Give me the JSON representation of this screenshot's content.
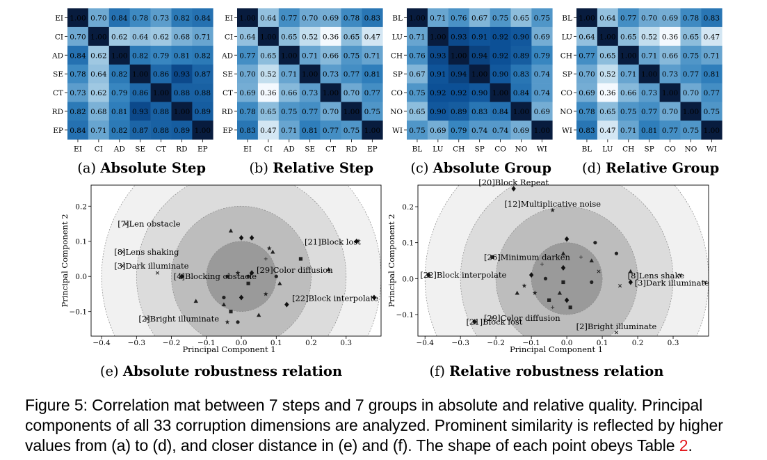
{
  "figure": {
    "matrices": [
      {
        "letter": "(a)",
        "title": "Absolute Step",
        "labels": [
          "EI",
          "CI",
          "AD",
          "SE",
          "CT",
          "RD",
          "EP"
        ],
        "values": [
          [
            1.0,
            0.7,
            0.84,
            0.78,
            0.73,
            0.82,
            0.84
          ],
          [
            0.7,
            1.0,
            0.62,
            0.64,
            0.62,
            0.68,
            0.71
          ],
          [
            0.84,
            0.62,
            1.0,
            0.82,
            0.79,
            0.81,
            0.82
          ],
          [
            0.78,
            0.64,
            0.82,
            1.0,
            0.86,
            0.93,
            0.87
          ],
          [
            0.73,
            0.62,
            0.79,
            0.86,
            1.0,
            0.88,
            0.88
          ],
          [
            0.82,
            0.68,
            0.81,
            0.93,
            0.88,
            1.0,
            0.89
          ],
          [
            0.84,
            0.71,
            0.82,
            0.87,
            0.88,
            0.89,
            1.0
          ]
        ]
      },
      {
        "letter": "(b)",
        "title": "Relative Step",
        "labels": [
          "EI",
          "CI",
          "AD",
          "SE",
          "CT",
          "RD",
          "EP"
        ],
        "values": [
          [
            1.0,
            0.64,
            0.77,
            0.7,
            0.69,
            0.78,
            0.83
          ],
          [
            0.64,
            1.0,
            0.65,
            0.52,
            0.36,
            0.65,
            0.47
          ],
          [
            0.77,
            0.65,
            1.0,
            0.71,
            0.66,
            0.75,
            0.71
          ],
          [
            0.7,
            0.52,
            0.71,
            1.0,
            0.73,
            0.77,
            0.81
          ],
          [
            0.69,
            0.36,
            0.66,
            0.73,
            1.0,
            0.7,
            0.77
          ],
          [
            0.78,
            0.65,
            0.75,
            0.77,
            0.7,
            1.0,
            0.75
          ],
          [
            0.83,
            0.47,
            0.71,
            0.81,
            0.77,
            0.75,
            1.0
          ]
        ]
      },
      {
        "letter": "(c)",
        "title": "Absolute Group",
        "labels": [
          "BL",
          "LU",
          "CH",
          "SP",
          "CO",
          "NO",
          "WI"
        ],
        "values": [
          [
            1.0,
            0.71,
            0.76,
            0.67,
            0.75,
            0.65,
            0.75
          ],
          [
            0.71,
            1.0,
            0.93,
            0.91,
            0.92,
            0.9,
            0.69
          ],
          [
            0.76,
            0.93,
            1.0,
            0.94,
            0.92,
            0.89,
            0.79
          ],
          [
            0.67,
            0.91,
            0.94,
            1.0,
            0.9,
            0.83,
            0.74
          ],
          [
            0.75,
            0.92,
            0.92,
            0.9,
            1.0,
            0.84,
            0.74
          ],
          [
            0.65,
            0.9,
            0.89,
            0.83,
            0.84,
            1.0,
            0.69
          ],
          [
            0.75,
            0.69,
            0.79,
            0.74,
            0.74,
            0.69,
            1.0
          ]
        ]
      },
      {
        "letter": "(d)",
        "title": "Relative Group",
        "labels": [
          "BL",
          "LU",
          "CH",
          "SP",
          "CO",
          "NO",
          "WI"
        ],
        "values": [
          [
            1.0,
            0.64,
            0.77,
            0.7,
            0.69,
            0.78,
            0.83
          ],
          [
            0.64,
            1.0,
            0.65,
            0.52,
            0.36,
            0.65,
            0.47
          ],
          [
            0.77,
            0.65,
            1.0,
            0.71,
            0.66,
            0.75,
            0.71
          ],
          [
            0.7,
            0.52,
            0.71,
            1.0,
            0.73,
            0.77,
            0.81
          ],
          [
            0.69,
            0.36,
            0.66,
            0.73,
            1.0,
            0.7,
            0.77
          ],
          [
            0.78,
            0.65,
            0.75,
            0.77,
            0.7,
            1.0,
            0.75
          ],
          [
            0.83,
            0.47,
            0.71,
            0.81,
            0.77,
            0.75,
            1.0
          ]
        ]
      }
    ],
    "scatters": [
      {
        "letter": "(e)",
        "title": "Absolute robustness relation",
        "xlabel": "Principal Component 1",
        "ylabel": "Principal Component 2",
        "xticks": [
          -0.4,
          -0.3,
          -0.2,
          -0.1,
          0.0,
          0.1,
          0.2,
          0.3
        ],
        "yticks": [
          0.2,
          0.1,
          0.0,
          -0.1
        ],
        "xlim": [
          -0.43,
          0.4
        ],
        "ylim": [
          -0.17,
          0.26
        ],
        "circle_radii": [
          0.1,
          0.2,
          0.3,
          0.4
        ],
        "points": [
          {
            "x": -0.33,
            "y": 0.15,
            "m": "x",
            "label": "[7]Len obstacle"
          },
          {
            "x": -0.34,
            "y": 0.07,
            "m": "x",
            "label": "[8]Lens shaking"
          },
          {
            "x": -0.34,
            "y": 0.03,
            "m": "x",
            "label": "[3]Dark illuminate"
          },
          {
            "x": -0.24,
            "y": 0.01,
            "m": "x"
          },
          {
            "x": -0.17,
            "y": 0.0,
            "m": "d",
            "label": "[4]Blocking obstacle"
          },
          {
            "x": -0.27,
            "y": -0.12,
            "m": "x",
            "label": "[2]Bright illuminate"
          },
          {
            "x": 0.33,
            "y": 0.1,
            "m": "d",
            "label": "[21]Block lost"
          },
          {
            "x": 0.25,
            "y": 0.02,
            "m": "^",
            "label": "[29]Color diffusion"
          },
          {
            "x": 0.38,
            "y": -0.06,
            "m": "d",
            "label": "[22]Block interpolate"
          },
          {
            "x": -0.03,
            "y": 0.13,
            "m": "^"
          },
          {
            "x": 0.03,
            "y": 0.11,
            "m": "d"
          },
          {
            "x": 0.0,
            "y": 0.11,
            "m": "d"
          },
          {
            "x": 0.09,
            "y": 0.07,
            "m": "^"
          },
          {
            "x": 0.08,
            "y": 0.08,
            "m": "*"
          },
          {
            "x": 0.07,
            "y": 0.05,
            "m": "+"
          },
          {
            "x": 0.17,
            "y": 0.05,
            "m": "s"
          },
          {
            "x": 0.03,
            "y": 0.01,
            "m": "d"
          },
          {
            "x": -0.01,
            "y": 0.01,
            "m": "*"
          },
          {
            "x": -0.04,
            "y": 0.0,
            "m": "o"
          },
          {
            "x": 0.02,
            "y": 0.0,
            "m": "o"
          },
          {
            "x": 0.1,
            "y": 0.0,
            "m": "o"
          },
          {
            "x": 0.02,
            "y": -0.02,
            "m": "s"
          },
          {
            "x": 0.11,
            "y": -0.02,
            "m": "^"
          },
          {
            "x": 0.07,
            "y": -0.05,
            "m": "*"
          },
          {
            "x": 0.0,
            "y": -0.06,
            "m": "d"
          },
          {
            "x": -0.05,
            "y": -0.06,
            "m": "o"
          },
          {
            "x": 0.13,
            "y": -0.08,
            "m": "d"
          },
          {
            "x": -0.13,
            "y": -0.07,
            "m": "^"
          },
          {
            "x": -0.03,
            "y": -0.1,
            "m": "s"
          },
          {
            "x": -0.01,
            "y": -0.13,
            "m": "o"
          },
          {
            "x": 0.05,
            "y": -0.11,
            "m": "^"
          },
          {
            "x": -0.04,
            "y": -0.13,
            "m": "*"
          },
          {
            "x": -0.05,
            "y": -0.08,
            "m": "^"
          }
        ]
      },
      {
        "letter": "(f)",
        "title": "Relative robustness relation",
        "xlabel": "Principal Component 1",
        "ylabel": "Principal Component 2",
        "xticks": [
          -0.4,
          -0.3,
          -0.2,
          -0.1,
          0.0,
          0.1,
          0.2,
          0.3
        ],
        "yticks": [
          0.2,
          0.1,
          0.0,
          -0.1
        ],
        "xlim": [
          -0.42,
          0.4
        ],
        "ylim": [
          -0.16,
          0.26
        ],
        "circle_radii": [
          0.1,
          0.2,
          0.3,
          0.4
        ],
        "points": [
          {
            "x": -0.15,
            "y": 0.25,
            "m": "d",
            "label": "[20]Block Repeat"
          },
          {
            "x": -0.04,
            "y": 0.19,
            "m": "*",
            "label": "[12]Multiplicative noise"
          },
          {
            "x": -0.21,
            "y": 0.06,
            "m": "s",
            "label": "[26]Minimum darken"
          },
          {
            "x": -0.39,
            "y": 0.01,
            "m": "d",
            "label": "[22]Block interpolate"
          },
          {
            "x": 0.32,
            "y": 0.01,
            "m": "x",
            "label": "[8]Lens shake"
          },
          {
            "x": 0.39,
            "y": -0.01,
            "m": "x",
            "label": "[3]Dark illuminate"
          },
          {
            "x": -0.21,
            "y": -0.11,
            "m": "+",
            "label": "[29]Color diffusion"
          },
          {
            "x": -0.26,
            "y": -0.12,
            "m": "d",
            "label": "[21]Block lost"
          },
          {
            "x": 0.14,
            "y": -0.15,
            "m": "x",
            "label": "[2]Bright illuminate"
          },
          {
            "x": 0.0,
            "y": 0.11,
            "m": "d"
          },
          {
            "x": 0.08,
            "y": 0.1,
            "m": "o"
          },
          {
            "x": 0.14,
            "y": 0.07,
            "m": "o"
          },
          {
            "x": -0.01,
            "y": 0.07,
            "m": "^"
          },
          {
            "x": 0.04,
            "y": 0.06,
            "m": "+"
          },
          {
            "x": -0.07,
            "y": 0.04,
            "m": "+"
          },
          {
            "x": -0.01,
            "y": 0.03,
            "m": "d"
          },
          {
            "x": 0.07,
            "y": 0.05,
            "m": "^"
          },
          {
            "x": 0.09,
            "y": 0.02,
            "m": "x"
          },
          {
            "x": 0.18,
            "y": 0.02,
            "m": "^"
          },
          {
            "x": -0.1,
            "y": 0.01,
            "m": "d"
          },
          {
            "x": -0.06,
            "y": 0.0,
            "m": "o"
          },
          {
            "x": -0.01,
            "y": -0.01,
            "m": "s"
          },
          {
            "x": 0.07,
            "y": -0.01,
            "m": "o"
          },
          {
            "x": 0.15,
            "y": -0.02,
            "m": "x"
          },
          {
            "x": 0.18,
            "y": -0.01,
            "m": "d"
          },
          {
            "x": -0.14,
            "y": -0.04,
            "m": "^"
          },
          {
            "x": -0.12,
            "y": -0.02,
            "m": "*"
          },
          {
            "x": -0.02,
            "y": -0.04,
            "m": "^"
          },
          {
            "x": -0.05,
            "y": -0.06,
            "m": "s"
          },
          {
            "x": -0.04,
            "y": -0.08,
            "m": "+"
          },
          {
            "x": 0.0,
            "y": -0.06,
            "m": "d"
          },
          {
            "x": 0.01,
            "y": -0.08,
            "m": "s"
          },
          {
            "x": -0.09,
            "y": -0.04,
            "m": "*"
          }
        ]
      }
    ],
    "caption_main": "Figure 5: Correlation mat between 7 steps and 7 groups in absolute and relative quality. Principal components of all 33 corruption dimensions are analyzed. Prominent similarity is reflected by higher values from (a) to (d), and closer distance in (e) and (f). The shape of each point obeys Table ",
    "caption_ref": "2",
    "caption_end": "."
  }
}
